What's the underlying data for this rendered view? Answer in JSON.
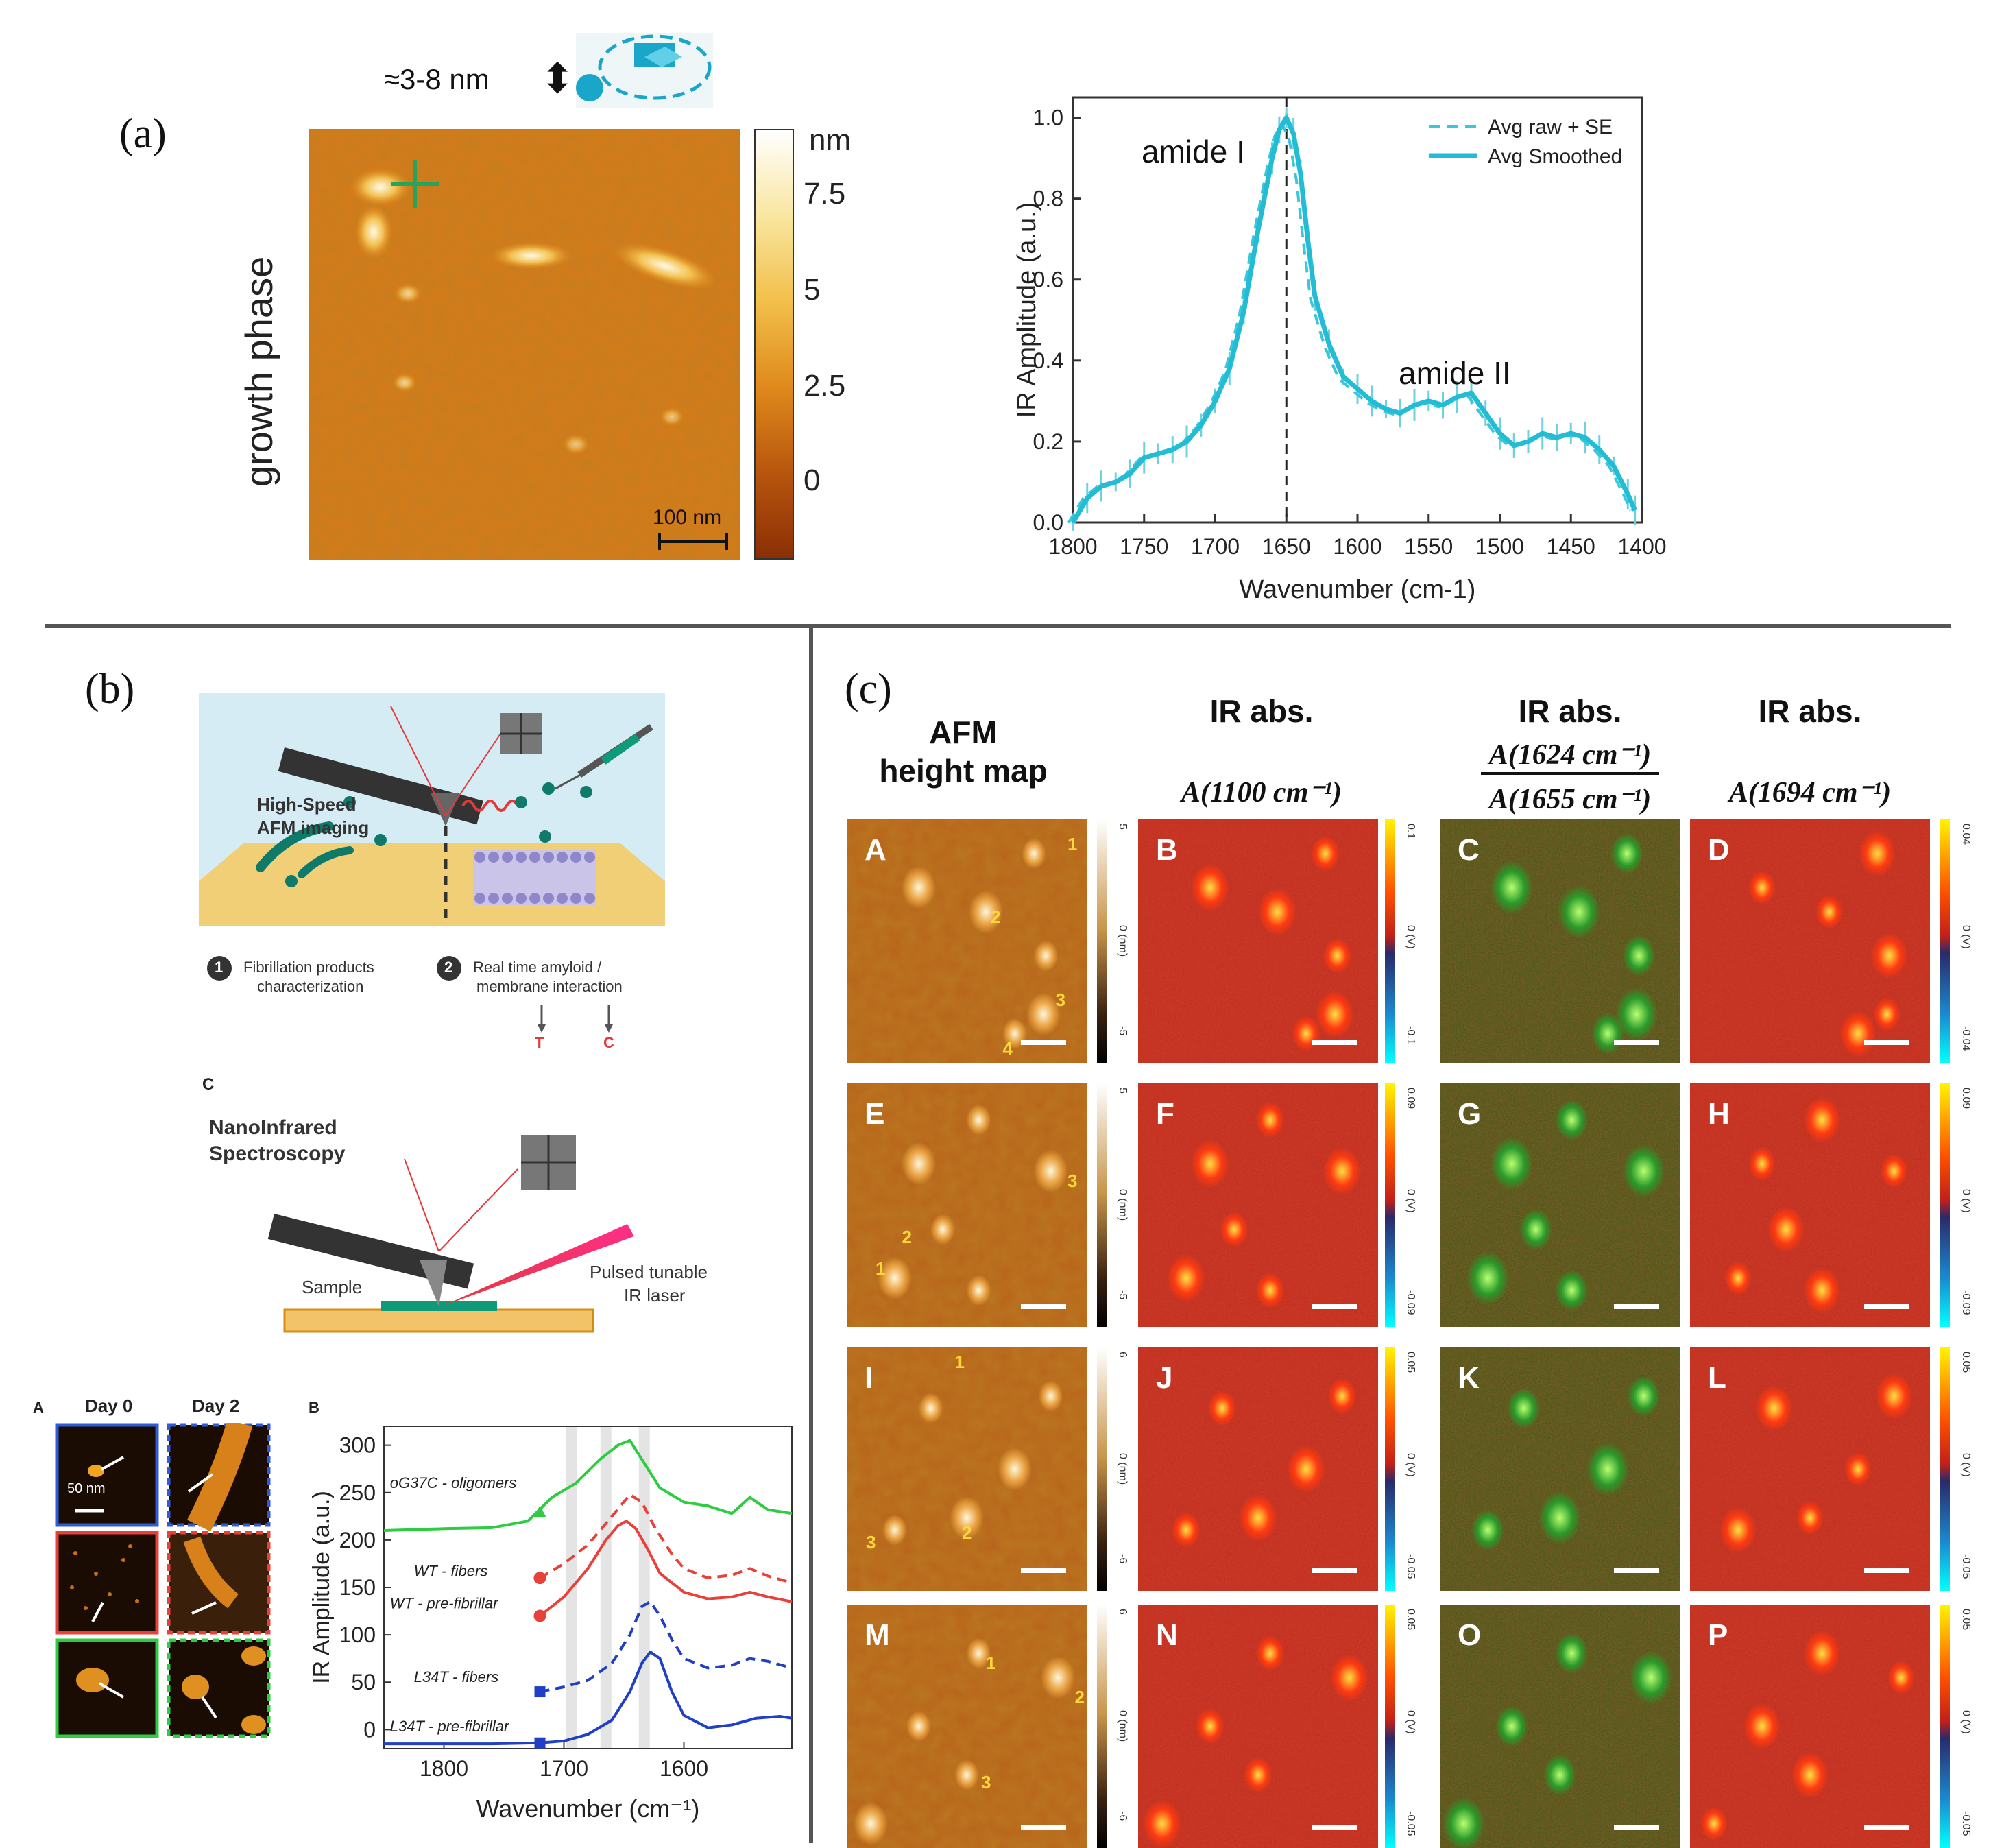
{
  "panel_a": {
    "label": "(a)",
    "side_label": "growth phase",
    "size_note": "≈3-8 nm",
    "arrow_symbol": "⬍",
    "afm_image": {
      "scale_bar": "100 nm"
    },
    "colorbar": {
      "unit": "nm",
      "ticks": [
        "7.5",
        "5",
        "2.5",
        "0"
      ]
    }
  },
  "panel_b": {
    "label": "(b)",
    "schematic_top": {
      "title_line1": "High-Speed",
      "title_line2": "AFM imaging",
      "step1_num": "1",
      "step1_line1": "Fibrillation products",
      "step1_line2": "characterization",
      "step2_num": "2",
      "step2_line1": "Real time amyloid /",
      "step2_line2": "membrane interaction",
      "arrow_t": "T",
      "arrow_c": "C"
    },
    "schematic_bottom": {
      "tag": "C",
      "title_line1": "NanoInfrared",
      "title_line2": "Spectroscopy",
      "sample": "Sample",
      "laser_line1": "Pulsed tunable",
      "laser_line2": "IR laser"
    },
    "sub_a": {
      "tag": "A",
      "col1": "Day 0",
      "col2": "Day 2",
      "scale": "50 nm"
    },
    "sub_b": {
      "tag": "B"
    }
  },
  "panel_c": {
    "label": "(c)",
    "col_headers": [
      "AFM\nheight map",
      "IR abs.",
      "IR abs.",
      "IR abs."
    ],
    "formula_1": "A(1100 cm⁻¹)",
    "formula_2_num": "A(1624 cm⁻¹)",
    "formula_2_den": "A(1655 cm⁻¹)",
    "formula_3": "A(1694 cm⁻¹)",
    "letters": [
      "A",
      "B",
      "C",
      "D",
      "E",
      "F",
      "G",
      "H",
      "I",
      "J",
      "K",
      "L",
      "M",
      "N",
      "O",
      "P"
    ],
    "colorbars": {
      "row1": {
        "afm": [
          "5",
          "0 (nm)",
          "-5"
        ],
        "ir1": [
          "0.1",
          "0 (V)",
          "-0.1"
        ],
        "ir3": [
          "0.04",
          "0 (V)",
          "-0.04"
        ]
      },
      "row2": {
        "afm": [
          "5",
          "0 (nm)",
          "-5"
        ],
        "ir1": [
          "0.09",
          "0 (V)",
          "-0.09"
        ],
        "ir3": [
          "0.09",
          "0 (V)",
          "-0.09"
        ]
      },
      "row3": {
        "afm": [
          "6",
          "0 (nm)",
          "-6"
        ],
        "ir1": [
          "0.05",
          "0 (V)",
          "-0.05"
        ],
        "ir3": [
          "0.05",
          "0 (V)",
          "-0.05"
        ]
      },
      "row4": {
        "afm": [
          "6",
          "0 (nm)",
          "-6"
        ],
        "ir1": [
          "0.05",
          "0 (V)",
          "-0.05"
        ],
        "ir3": [
          "0.05",
          "0 (V)",
          "-0.05"
        ]
      }
    },
    "afm_numbers": {
      "row1": [
        "1",
        "2",
        "3",
        "4"
      ],
      "row2": [
        "3",
        "2",
        "1"
      ],
      "row3": [
        "1",
        "2",
        "3"
      ],
      "row4": [
        "1",
        "2",
        "3"
      ]
    }
  },
  "chart_data": [
    {
      "type": "line",
      "title": "",
      "xlabel": "Wavenumber (cm-1)",
      "ylabel": "IR Amplitude (a.u.)",
      "xlim": [
        1800,
        1400
      ],
      "ylim": [
        0.0,
        1.05
      ],
      "x_ticks": [
        "1800",
        "1750",
        "1700",
        "1650",
        "1600",
        "1550",
        "1500",
        "1450",
        "1400"
      ],
      "y_ticks": [
        "0.0",
        "0.2",
        "0.4",
        "0.6",
        "0.8",
        "1.0"
      ],
      "legend": [
        "Avg raw + SE",
        "Avg Smoothed"
      ],
      "legend_position": "top-right",
      "annotations": [
        "amide I",
        "amide II"
      ],
      "vline_x": 1650,
      "series": [
        {
          "name": "Avg Smoothed",
          "x": [
            1800,
            1790,
            1780,
            1770,
            1760,
            1750,
            1740,
            1730,
            1720,
            1710,
            1700,
            1690,
            1680,
            1670,
            1660,
            1655,
            1650,
            1645,
            1640,
            1635,
            1630,
            1620,
            1610,
            1600,
            1590,
            1580,
            1570,
            1560,
            1550,
            1540,
            1530,
            1520,
            1510,
            1500,
            1490,
            1480,
            1470,
            1460,
            1450,
            1440,
            1430,
            1420,
            1410,
            1405
          ],
          "values": [
            0.0,
            0.06,
            0.09,
            0.1,
            0.12,
            0.16,
            0.17,
            0.18,
            0.2,
            0.24,
            0.3,
            0.38,
            0.52,
            0.72,
            0.9,
            0.97,
            1.0,
            0.96,
            0.86,
            0.7,
            0.56,
            0.44,
            0.36,
            0.33,
            0.3,
            0.28,
            0.27,
            0.29,
            0.3,
            0.29,
            0.31,
            0.32,
            0.27,
            0.22,
            0.19,
            0.2,
            0.22,
            0.21,
            0.22,
            0.21,
            0.18,
            0.14,
            0.07,
            0.03
          ]
        }
      ]
    },
    {
      "type": "line",
      "title": "",
      "xlabel": "Wavenumber (cm⁻¹)",
      "ylabel": "IR Amplitude (a.u.)",
      "xlim": [
        1850,
        1510
      ],
      "ylim": [
        -20,
        320
      ],
      "x_ticks": [
        "1800",
        "1700",
        "1600"
      ],
      "y_ticks": [
        "0",
        "50",
        "100",
        "150",
        "200",
        "250",
        "300"
      ],
      "shaded_bands": [
        1694,
        1665,
        1633
      ],
      "series": [
        {
          "name": "oG37C - oligomers",
          "style": "solid",
          "color": "#2ecc40",
          "x": [
            1850,
            1800,
            1760,
            1730,
            1710,
            1690,
            1670,
            1655,
            1645,
            1630,
            1620,
            1600,
            1580,
            1560,
            1545,
            1530,
            1510
          ],
          "values": [
            210,
            212,
            213,
            220,
            245,
            260,
            285,
            300,
            305,
            275,
            255,
            240,
            236,
            228,
            245,
            232,
            228
          ]
        },
        {
          "name": "WT - fibers",
          "style": "dashed",
          "color": "#e8413a",
          "x": [
            1720,
            1700,
            1680,
            1660,
            1645,
            1635,
            1625,
            1610,
            1600,
            1580,
            1560,
            1545,
            1530,
            1510
          ],
          "values": [
            160,
            175,
            195,
            225,
            248,
            240,
            215,
            185,
            170,
            160,
            163,
            170,
            162,
            155
          ]
        },
        {
          "name": "WT - pre-fibrillar",
          "style": "solid",
          "color": "#e8413a",
          "x": [
            1720,
            1700,
            1680,
            1665,
            1655,
            1648,
            1640,
            1630,
            1620,
            1600,
            1580,
            1560,
            1545,
            1530,
            1510
          ],
          "values": [
            120,
            140,
            170,
            200,
            215,
            220,
            212,
            190,
            165,
            145,
            138,
            140,
            145,
            140,
            135
          ]
        },
        {
          "name": "L34T - fibers",
          "style": "dashed",
          "color": "#1f3fc4",
          "x": [
            1720,
            1700,
            1680,
            1660,
            1645,
            1635,
            1628,
            1620,
            1610,
            1600,
            1580,
            1560,
            1545,
            1530,
            1510
          ],
          "values": [
            40,
            45,
            52,
            70,
            100,
            130,
            135,
            120,
            95,
            75,
            65,
            68,
            75,
            72,
            65
          ]
        },
        {
          "name": "L34T - pre-fibrillar",
          "style": "solid",
          "color": "#1f3fc4",
          "x": [
            1850,
            1760,
            1720,
            1700,
            1680,
            1660,
            1645,
            1635,
            1628,
            1620,
            1610,
            1600,
            1580,
            1560,
            1540,
            1520,
            1510
          ],
          "values": [
            -15,
            -15,
            -14,
            -12,
            -5,
            10,
            40,
            70,
            82,
            75,
            40,
            15,
            2,
            5,
            12,
            14,
            12
          ]
        }
      ]
    }
  ]
}
